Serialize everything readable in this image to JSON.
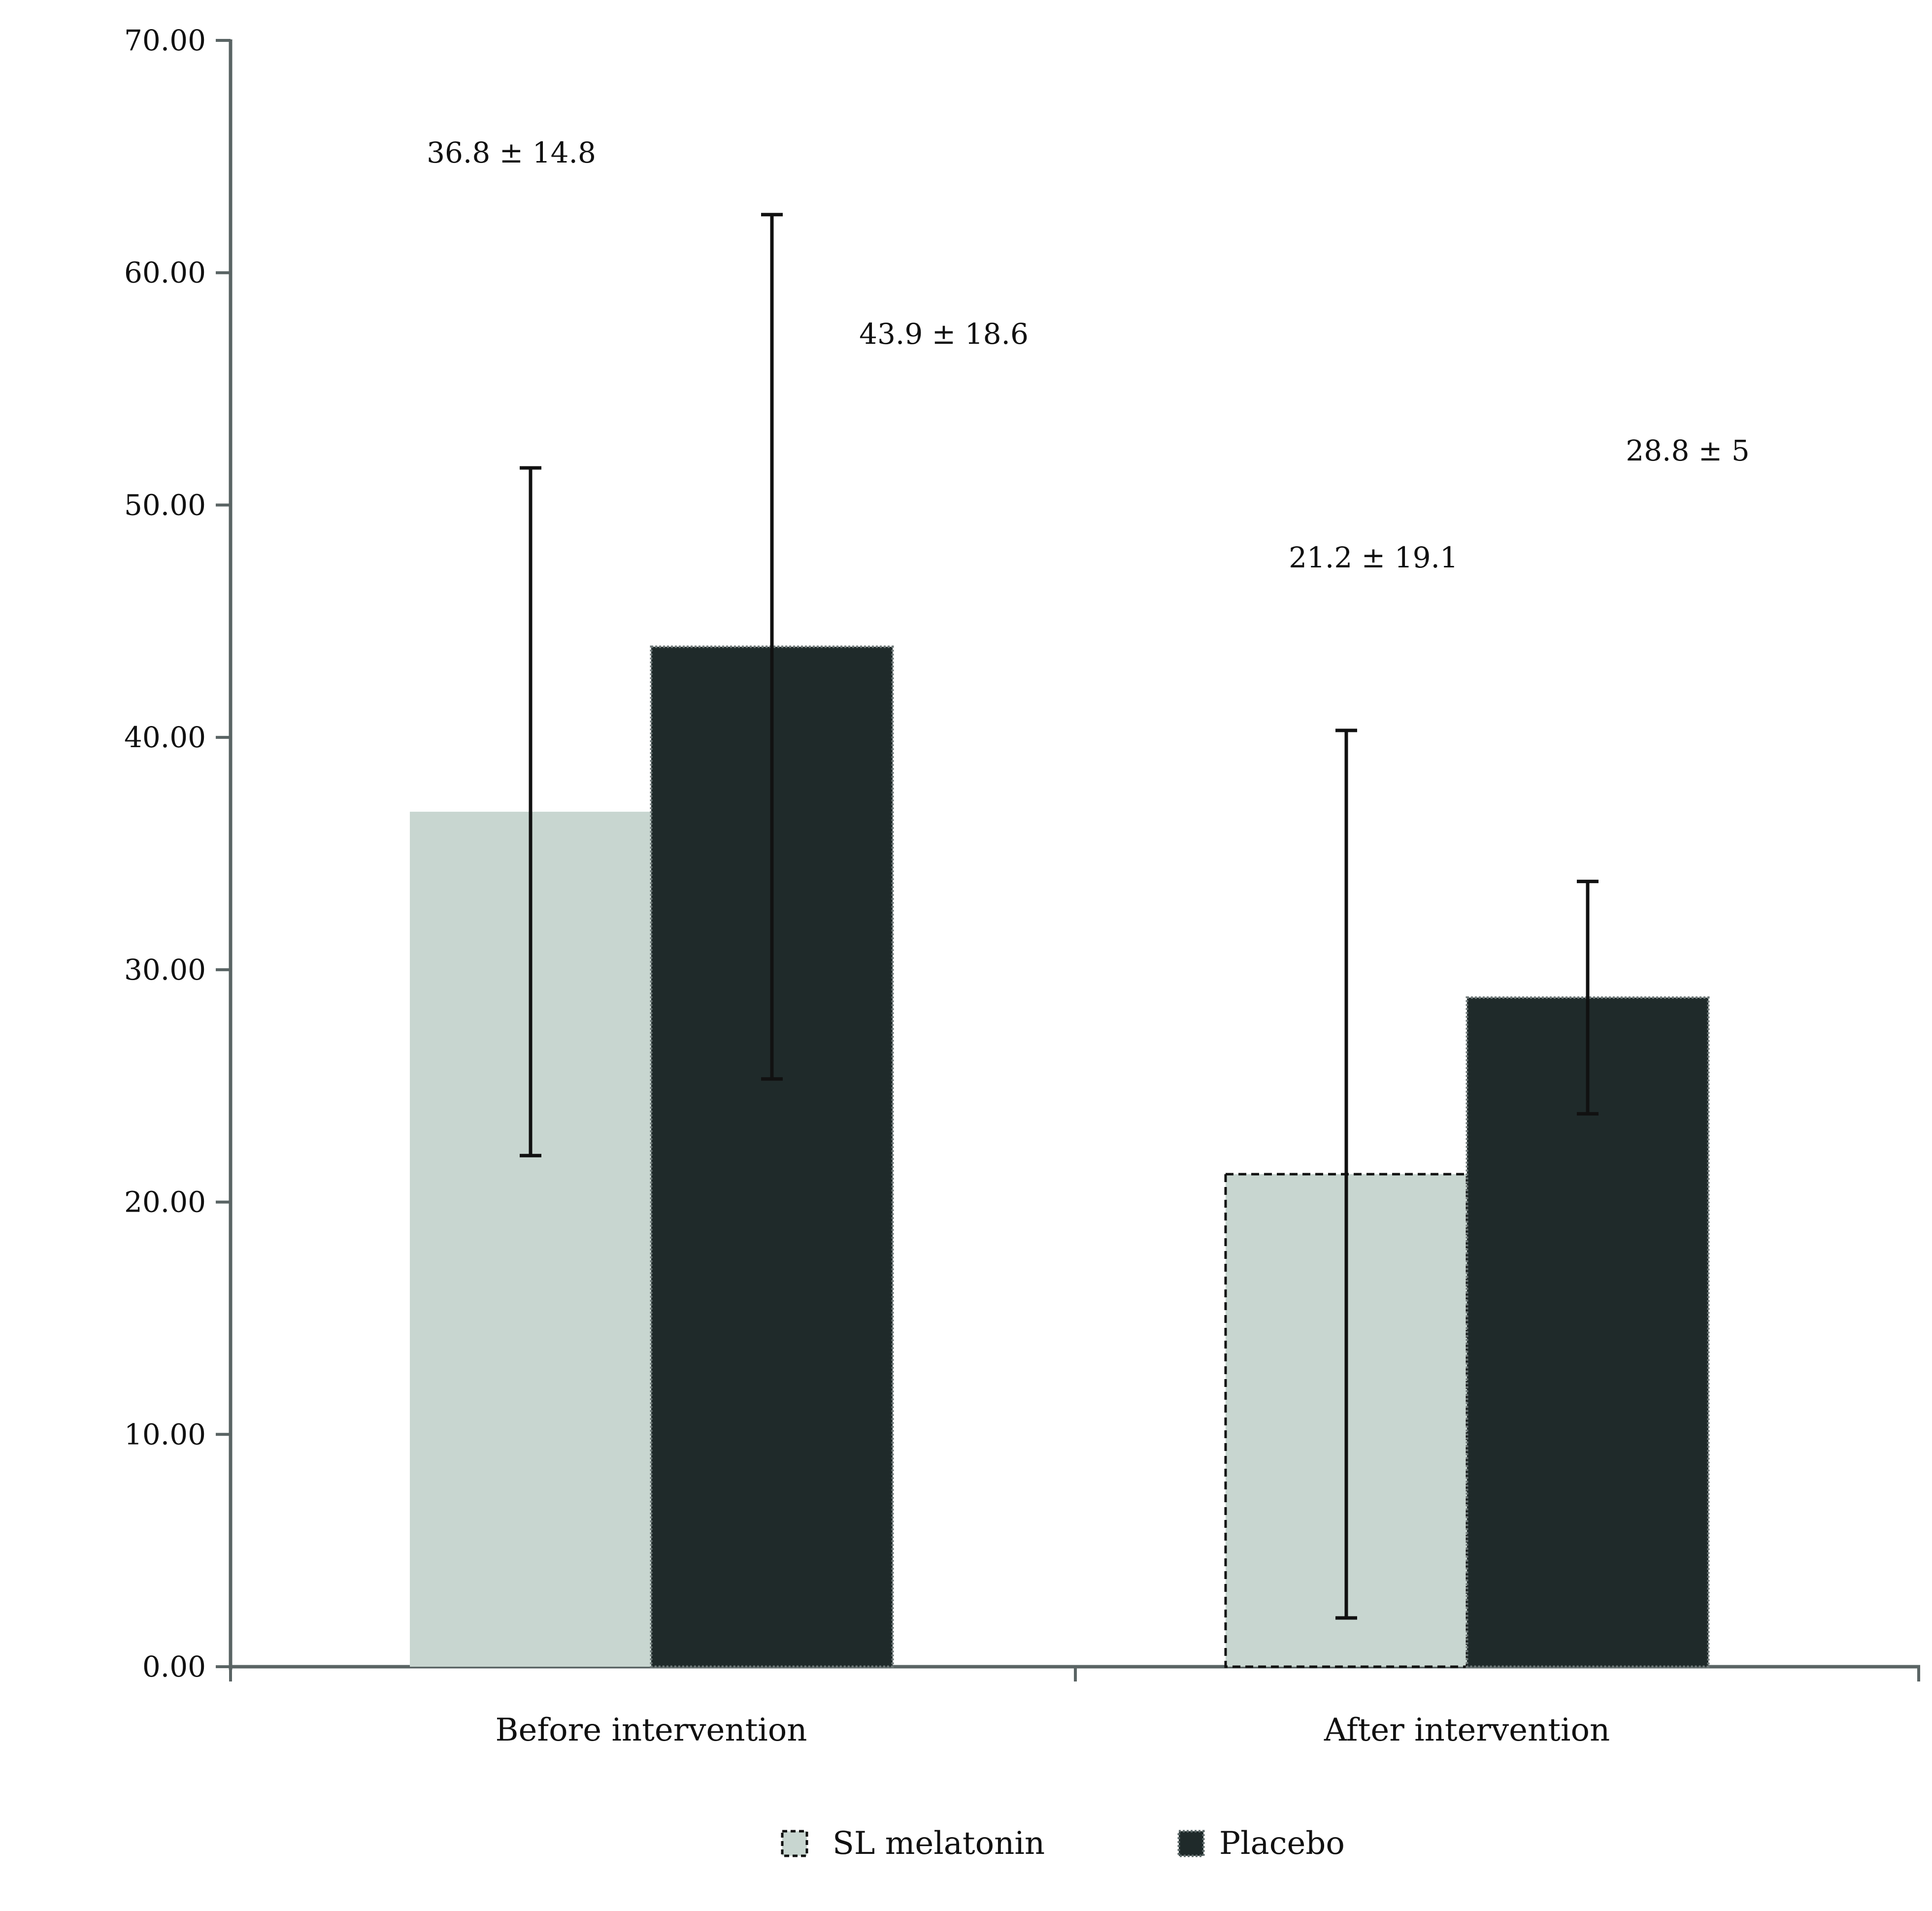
{
  "chart_data": {
    "type": "bar",
    "categories": [
      "Before intervention",
      "After intervention"
    ],
    "series": [
      {
        "name": "SL melatonin",
        "values": [
          36.8,
          21.2
        ],
        "errors": [
          14.8,
          19.1
        ],
        "labels": [
          "36.8 ± 14.8",
          "21.2 ± 19.1"
        ]
      },
      {
        "name": "Placebo",
        "values": [
          43.9,
          28.8
        ],
        "errors": [
          18.6,
          5
        ],
        "labels": [
          "43.9 ± 18.6",
          "28.8 ± 5"
        ]
      }
    ],
    "title": "",
    "xlabel": "",
    "ylabel": "",
    "ylim": [
      0,
      70
    ],
    "yticks": [
      "0.00",
      "10.00",
      "20.00",
      "30.00",
      "40.00",
      "50.00",
      "60.00",
      "70.00"
    ],
    "grid": false,
    "legend_position": "bottom-center",
    "colors": {
      "SL melatonin": "#c8d6d0",
      "Placebo": "#1f2a2a",
      "axis": "#5a6464",
      "error_bar": "#111111"
    }
  }
}
